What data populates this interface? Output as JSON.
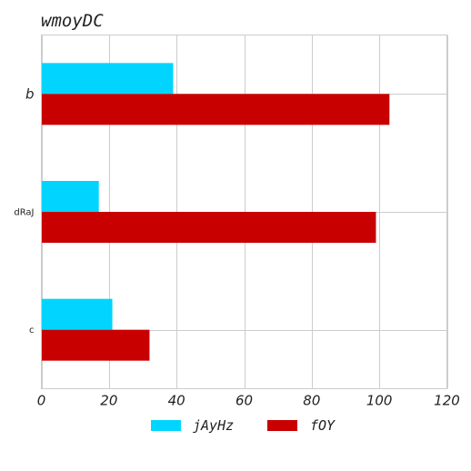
{
  "chart_data": {
    "type": "bar",
    "orientation": "horizontal",
    "title": "wmoyDC",
    "categories": [
      "b",
      "dRaJ",
      "c"
    ],
    "series": [
      {
        "name": "jAyHz",
        "values": [
          39,
          17,
          21
        ],
        "color": "#00d4ff"
      },
      {
        "name": "fOY",
        "values": [
          103,
          99,
          32
        ],
        "color": "#c80000"
      }
    ],
    "xlim": [
      0,
      120
    ],
    "xticks": [
      "0",
      "20",
      "40",
      "60",
      "80",
      "100",
      "120"
    ],
    "grid": true,
    "legend_position": "bottom"
  }
}
